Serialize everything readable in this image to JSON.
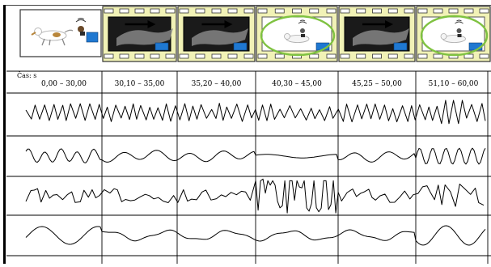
{
  "time_axis": {
    "label": "Čas: s",
    "intervals": [
      "0,00 – 30,00",
      "30,10 – 35,00",
      "35,20 – 40,00",
      "40,30 – 45,00",
      "45,25 – 50,00",
      "51,10 – 60,00"
    ]
  },
  "frames": [
    {
      "scene": "dog-and-owner",
      "style": "plain"
    },
    {
      "scene": "dark-arrow",
      "style": "film"
    },
    {
      "scene": "dark-arrow",
      "style": "film"
    },
    {
      "scene": "dog-circled",
      "style": "film"
    },
    {
      "scene": "dark-arrow",
      "style": "film"
    },
    {
      "scene": "dog-circled",
      "style": "film"
    }
  ],
  "signals": [
    {
      "name": "signal-1",
      "style": "dense-spiky"
    },
    {
      "name": "signal-2",
      "style": "mixed"
    },
    {
      "name": "signal-3",
      "style": "irregular-spiky"
    },
    {
      "name": "signal-4",
      "style": "slow-waves"
    }
  ],
  "colors": {
    "film": "#f1f2b6",
    "film_border": "#333333",
    "accent_blue": "#1f78d1",
    "circle": "#7fc241",
    "ink": "#000000"
  }
}
